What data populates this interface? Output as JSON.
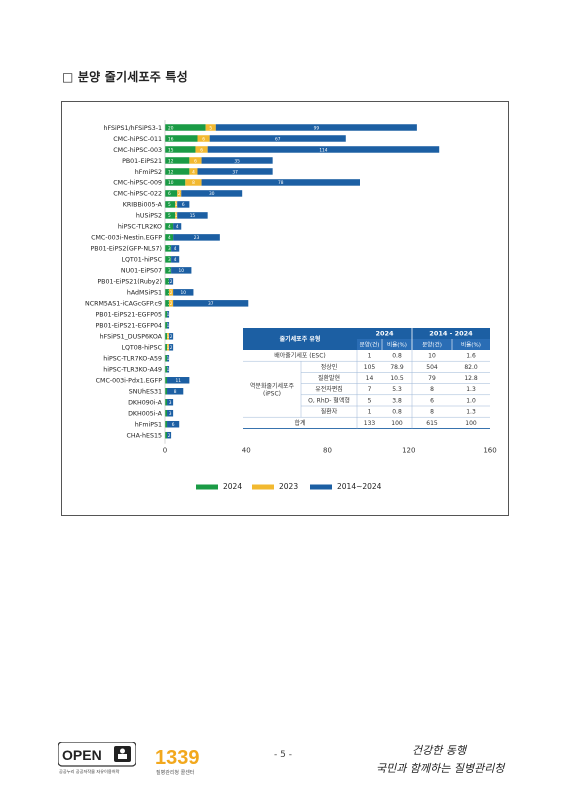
{
  "heading": "□ 분양 줄기세포주 특성",
  "chart_data": {
    "type": "bar",
    "stacked": true,
    "categories": [
      "hFSiPS1/hFSiPS3-1",
      "CMC-hiPSC-011",
      "CMC-hiPSC-003",
      "PB01-EiPS21",
      "hFmiPS2",
      "CMC-hiPSC-009",
      "CMC-hiPSC-022",
      "KRIBBi005-A",
      "hUSiPS2",
      "hiPSC-TLR2KO",
      "CMC-003i-Nestin.EGFP",
      "PB01-EiPS2(GFP-NLS7)",
      "LQT01-hiPSC",
      "NU01-EiPS07",
      "PB01-EiPS21(Ruby2)",
      "hAdMSiPS1",
      "NCRM5AS1-iCAGcGFP.c9",
      "PB01-EiPS21-EGFP05",
      "PB01-EiPS21-EGFP04",
      "hFSiPS1_DUSP6KOA",
      "LQT08-hiPSC",
      "hiPSC-TLR7KO-A59",
      "hiPSC-TLR3KO-A49",
      "CMC-003i-Pdx1.EGFP",
      "SNUhES31",
      "DKH090i-A",
      "DKH005i-A",
      "hFmiPS1",
      "CHA-hES15"
    ],
    "series": [
      {
        "name": "2024",
        "color": "#1a9b45",
        "values": [
          20,
          16,
          15,
          12,
          12,
          10,
          6,
          5,
          5,
          4,
          4,
          3,
          3,
          3,
          2,
          2,
          2,
          1,
          1,
          1,
          1,
          1,
          1,
          1,
          1,
          1,
          1,
          1,
          1
        ]
      },
      {
        "name": "2023",
        "color": "#f2b930",
        "values": [
          5,
          6,
          6,
          6,
          4,
          8,
          2,
          1,
          1,
          0,
          0,
          0,
          0,
          0,
          0,
          2,
          2,
          0,
          0,
          1,
          1,
          0,
          0,
          0,
          0,
          0,
          0,
          0,
          0
        ]
      },
      {
        "name": "2014~2024",
        "color": "#1c5fa3",
        "values": [
          99,
          67,
          114,
          35,
          37,
          78,
          30,
          6,
          15,
          4,
          23,
          4,
          4,
          10,
          2,
          10,
          37,
          1,
          1,
          2,
          2,
          1,
          1,
          11,
          8,
          3,
          3,
          6,
          2
        ]
      }
    ],
    "xticks": [
      0,
      40,
      80,
      120,
      160
    ],
    "xlim": [
      0,
      160
    ],
    "legend": [
      "2024",
      "2023",
      "2014~2024"
    ],
    "legend_position": "bottom",
    "grid": false
  },
  "table": {
    "headers": {
      "type": "줄기세포주 유형",
      "y2024": "2024",
      "range": "2014 - 2024",
      "count": "분양(건)",
      "ratio": "비율(%)"
    },
    "esc": {
      "label": "배아줄기세포 (ESC)",
      "c2024": "1",
      "r2024": "0.8",
      "ctot": "10",
      "rtot": "1.6"
    },
    "ipsc_label_1": "역분화줄기세포주",
    "ipsc_label_2": "(iPSC)",
    "ipsc_rows": [
      {
        "label": "정상인",
        "c2024": "105",
        "r2024": "78.9",
        "ctot": "504",
        "rtot": "82.0"
      },
      {
        "label": "질환발현",
        "c2024": "14",
        "r2024": "10.5",
        "ctot": "79",
        "rtot": "12.8"
      },
      {
        "label": "유전자편집",
        "c2024": "7",
        "r2024": "5.3",
        "ctot": "8",
        "rtot": "1.3"
      },
      {
        "label": "O, RhD- 혈액형",
        "c2024": "5",
        "r2024": "3.8",
        "ctot": "6",
        "rtot": "1.0"
      },
      {
        "label": "질환자",
        "c2024": "1",
        "r2024": "0.8",
        "ctot": "8",
        "rtot": "1.3"
      }
    ],
    "total": {
      "label": "합계",
      "c2024": "133",
      "r2024": "100",
      "ctot": "615",
      "rtot": "100"
    }
  },
  "footer": {
    "open_logo": "OPEN",
    "open_caption": "공공누리 공공저작물 자유이용허락",
    "logo_1339": "1339",
    "logo_1339_caption": "질병관리청 콜센터",
    "page_number": "- 5 -",
    "slogan_1": "건강한 동행",
    "slogan_2": "국민과 함께하는 질병관리청"
  }
}
